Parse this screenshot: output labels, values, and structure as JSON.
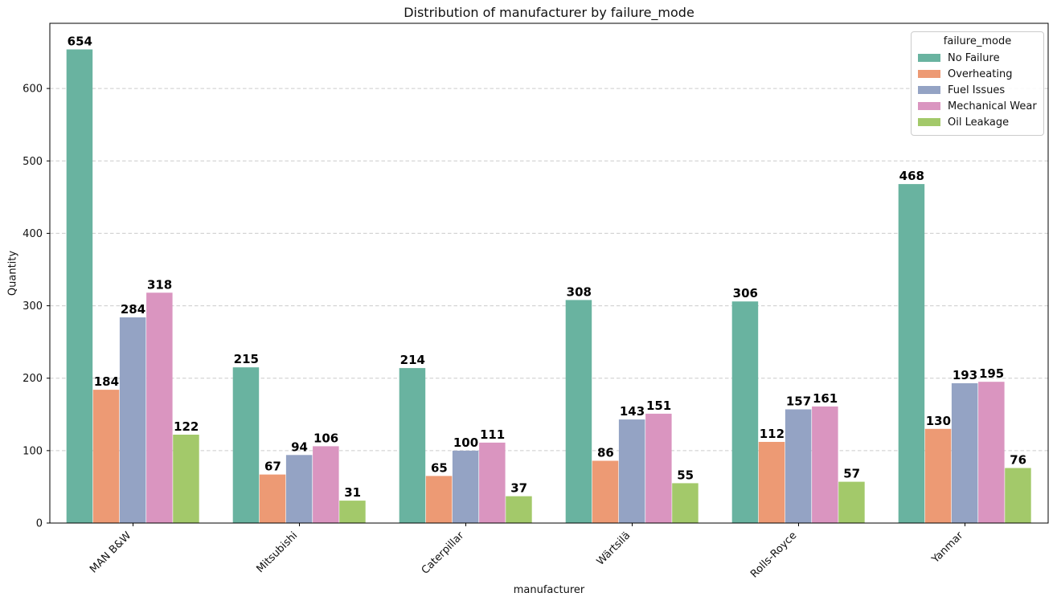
{
  "chart_data": {
    "type": "bar",
    "title": "Distribution of manufacturer by failure_mode",
    "xlabel": "manufacturer",
    "ylabel": "Quantity",
    "legend_title": "failure_mode",
    "legend_position": "upper right",
    "categories": [
      "MAN B&W",
      "Mitsubishi",
      "Caterpillar",
      "Wärtsilä",
      "Rolls-Royce",
      "Yanmar"
    ],
    "series": [
      {
        "name": "No Failure",
        "color": "#69b3a0",
        "values": [
          654,
          215,
          214,
          308,
          306,
          468
        ]
      },
      {
        "name": "Overheating",
        "color": "#ed9a74",
        "values": [
          184,
          67,
          65,
          86,
          112,
          130
        ]
      },
      {
        "name": "Fuel Issues",
        "color": "#94a3c4",
        "values": [
          284,
          94,
          100,
          143,
          157,
          193
        ]
      },
      {
        "name": "Mechanical Wear",
        "color": "#da95c0",
        "values": [
          318,
          106,
          111,
          151,
          161,
          195
        ]
      },
      {
        "name": "Oil Leakage",
        "color": "#a3c96a",
        "values": [
          122,
          31,
          37,
          55,
          57,
          76
        ]
      }
    ],
    "yticks": [
      0,
      100,
      200,
      300,
      400,
      500,
      600
    ],
    "ylim": [
      0,
      690
    ],
    "grid": "horizontal-dashed",
    "bar_labels": true,
    "colors": {
      "background": "#ffffff",
      "gridline": "#cccccc",
      "spine": "#000000",
      "text": "#111111"
    }
  }
}
